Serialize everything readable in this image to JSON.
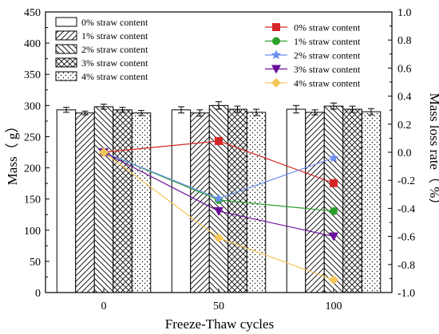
{
  "chart_data": {
    "type": "bar+line",
    "categories": [
      "0",
      "50",
      "100"
    ],
    "xlabel": "Freeze-Thaw cycles",
    "ylabel_left": "Mass（ g）",
    "ylabel_right": "Mass loss rate（ %）",
    "ylim_left": [
      0,
      450
    ],
    "ylim_right": [
      -1.0,
      1.0
    ],
    "yticks_left": [
      "0",
      "50",
      "100",
      "150",
      "200",
      "250",
      "300",
      "350",
      "400",
      "450"
    ],
    "yticks_right": [
      "-1.0",
      "-0.8",
      "-0.6",
      "-0.4",
      "-0.2",
      "0.0",
      "0.2",
      "0.4",
      "0.6",
      "0.8",
      "1.0"
    ],
    "legend_position": "top-left (bars), top-right (lines)",
    "bar_series": [
      {
        "name": "0% straw content",
        "pattern": "plain",
        "values": [
          293,
          293,
          294
        ],
        "errors": [
          4,
          5,
          6
        ]
      },
      {
        "name": "1% straw content",
        "pattern": "slash",
        "values": [
          288,
          288,
          289
        ],
        "errors": [
          3,
          5,
          4
        ]
      },
      {
        "name": "2% straw content",
        "pattern": "backslash",
        "values": [
          298,
          300,
          299
        ],
        "errors": [
          4,
          6,
          5
        ]
      },
      {
        "name": "3% straw content",
        "pattern": "crosshatch",
        "values": [
          293,
          294,
          294
        ],
        "errors": [
          4,
          5,
          5
        ]
      },
      {
        "name": "4% straw content",
        "pattern": "dots",
        "values": [
          288,
          289,
          290
        ],
        "errors": [
          4,
          5,
          5
        ]
      }
    ],
    "line_series": [
      {
        "name": "0% straw content",
        "color": "#d62728",
        "marker": "square",
        "values": [
          0.0,
          0.08,
          -0.22
        ]
      },
      {
        "name": "1% straw content",
        "color": "#2ca02c",
        "marker": "circle",
        "values": [
          0.0,
          -0.34,
          -0.42
        ]
      },
      {
        "name": "2% straw content",
        "color": "#6c8ff0",
        "marker": "star",
        "values": [
          0.0,
          -0.33,
          -0.04
        ]
      },
      {
        "name": "3% straw content",
        "color": "#6a0d9a",
        "marker": "triangle-down",
        "values": [
          0.0,
          -0.42,
          -0.6
        ]
      },
      {
        "name": "4% straw content",
        "color": "#f5c55a",
        "marker": "diamond",
        "values": [
          0.0,
          -0.61,
          -0.91
        ]
      }
    ]
  }
}
